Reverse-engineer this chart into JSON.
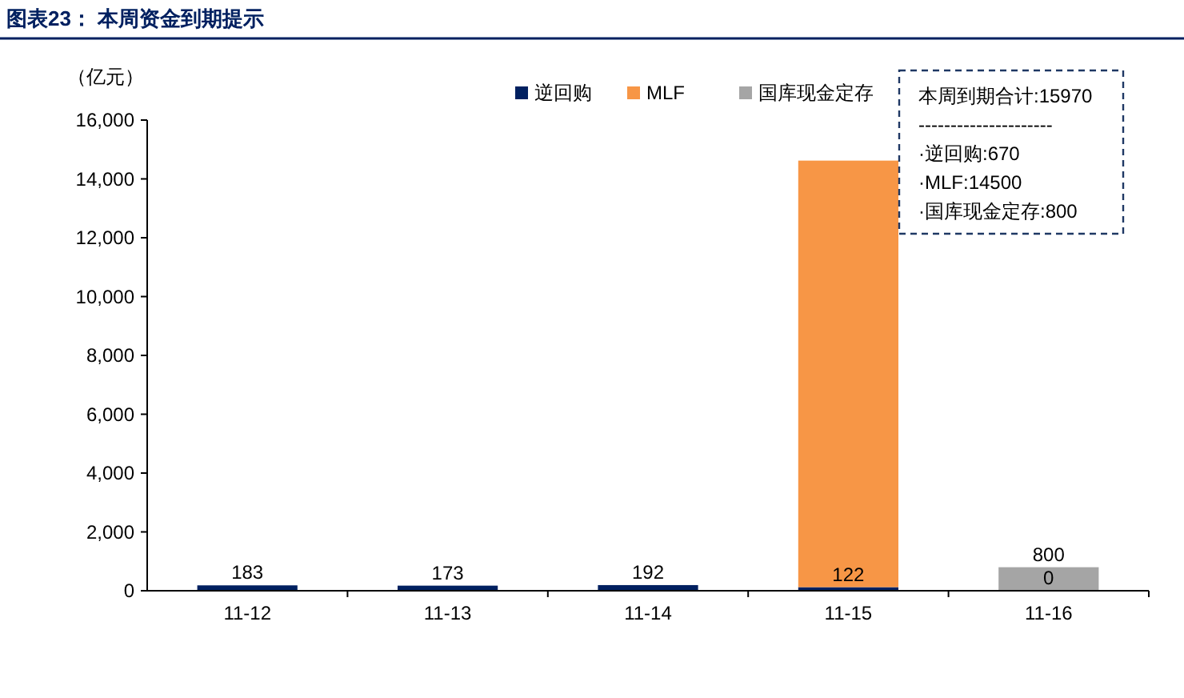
{
  "chart_data": {
    "type": "bar",
    "title": "图表23：  本周资金到期提示",
    "ylabel": "（亿元）",
    "categories": [
      "11-12",
      "11-13",
      "11-14",
      "11-15",
      "11-16"
    ],
    "stacked": true,
    "series": [
      {
        "name": "逆回购",
        "color": "#002060",
        "values": [
          183,
          173,
          192,
          122,
          0
        ],
        "value_labels": [
          "183",
          "173",
          "192",
          "122",
          "0"
        ]
      },
      {
        "name": "MLF",
        "color": "#f79646",
        "values": [
          null,
          null,
          null,
          14500,
          null
        ]
      },
      {
        "name": "国库现金定存",
        "color": "#a5a5a5",
        "values": [
          null,
          null,
          null,
          null,
          800
        ],
        "value_labels": [
          null,
          null,
          null,
          null,
          "800"
        ]
      }
    ],
    "ylim": [
      0,
      16000
    ],
    "yticks": [
      0,
      {
        "value": 2000,
        "label": "2,000"
      },
      {
        "value": 4000,
        "label": "4,000"
      },
      {
        "value": 6000,
        "label": "6,000"
      },
      {
        "value": 8000,
        "label": "8,000"
      },
      {
        "value": 10000,
        "label": "10,000"
      },
      {
        "value": 12000,
        "label": "12,000"
      },
      {
        "value": 14000,
        "label": "14,000"
      },
      {
        "value": 16000,
        "label": "16,000"
      }
    ],
    "grid": false,
    "legend": "top",
    "annotations": [
      "本周到期合计:15970\n---------------------\n·逆回购:670\n·MLF:14500\n·国库现金定存:800"
    ]
  }
}
